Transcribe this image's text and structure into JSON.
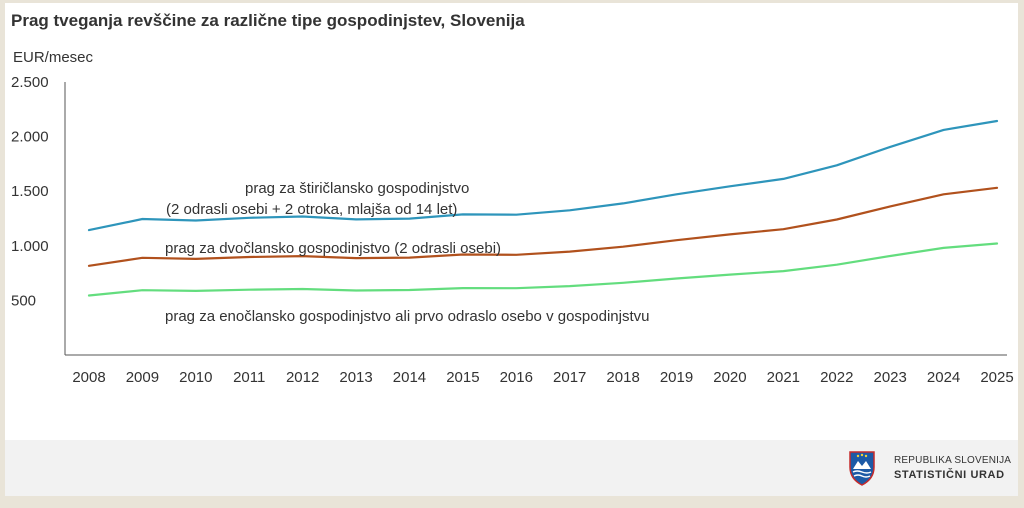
{
  "chart_data": {
    "type": "line",
    "title": "Prag tveganja revščine za različne tipe gospodinjstev, Slovenija",
    "ylabel": "EUR/mesec",
    "xlabel": "",
    "x": [
      2008,
      2009,
      2010,
      2011,
      2012,
      2013,
      2014,
      2015,
      2016,
      2017,
      2018,
      2019,
      2020,
      2021,
      2022,
      2023,
      2024,
      2025
    ],
    "y_ticks": [
      500,
      1000,
      1500,
      2000,
      2500
    ],
    "y_tick_labels": [
      "500",
      "1.000",
      "1.500",
      "2.000",
      "2.500"
    ],
    "ylim": [
      0,
      2500
    ],
    "grid": false,
    "series": [
      {
        "key": "four",
        "label_lines": [
          "prag za štiričlansko gospodinjstvo",
          "(2 odrasli osebi + 2 otroka, mlajša od 14 let)"
        ],
        "color": "#2e95bb",
        "values": [
          1144,
          1245,
          1232,
          1256,
          1268,
          1242,
          1249,
          1288,
          1285,
          1325,
          1388,
          1472,
          1545,
          1613,
          1737,
          1906,
          2061,
          2143
        ]
      },
      {
        "key": "two",
        "label_lines": [
          "prag za dvočlansko gospodinjstvo (2 odrasli osebi)"
        ],
        "color": "#b1511d",
        "values": [
          817,
          890,
          880,
          897,
          906,
          887,
          892,
          920,
          918,
          947,
          992,
          1051,
          1104,
          1152,
          1241,
          1361,
          1472,
          1531
        ]
      },
      {
        "key": "one",
        "label_lines": [
          "prag za enočlansko gospodinjstvo ali prvo odraslo osebo v gospodinjstvu"
        ],
        "color": "#63dd7e",
        "values": [
          545,
          593,
          587,
          598,
          604,
          591,
          595,
          613,
          612,
          631,
          661,
          701,
          736,
          768,
          827,
          907,
          981,
          1021
        ]
      }
    ]
  },
  "footer": {
    "org_line1": "REPUBLIKA SLOVENIJA",
    "org_line2": "STATISTIČNI URAD"
  },
  "colors": {
    "footer_bg": "#f2f2f2",
    "page_bg": "#e9e4d8",
    "logo_blue": "#1d5aa6"
  },
  "icons": {
    "logo": "slovenia-coat-of-arms-icon"
  }
}
